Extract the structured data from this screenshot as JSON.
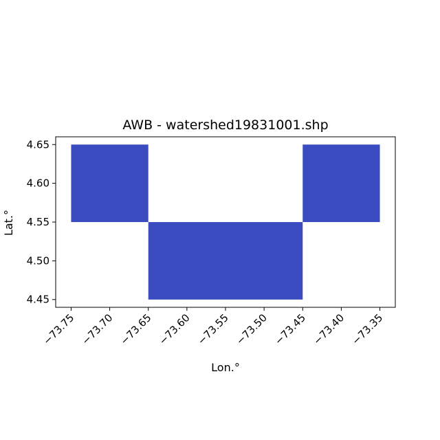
{
  "chart_data": {
    "type": "heatmap",
    "title": "AWB - watershed19831001.shp",
    "xlabel": "Lon.°",
    "ylabel": "Lat.°",
    "xlim": [
      -73.77,
      -73.33
    ],
    "ylim": [
      4.44,
      4.66
    ],
    "xticks": [
      -73.75,
      -73.7,
      -73.65,
      -73.6,
      -73.55,
      -73.5,
      -73.45,
      -73.4,
      -73.35
    ],
    "xtick_labels": [
      "−73.75",
      "−73.70",
      "−73.65",
      "−73.60",
      "−73.55",
      "−73.50",
      "−73.45",
      "−73.40",
      "−73.35"
    ],
    "yticks": [
      4.45,
      4.5,
      4.55,
      4.6,
      4.65
    ],
    "ytick_labels": [
      "4.45",
      "4.50",
      "4.55",
      "4.60",
      "4.65"
    ],
    "cell_color": "#3b4cc0",
    "grid": false,
    "cells": [
      {
        "lon_min": -73.75,
        "lon_max": -73.65,
        "lat_min": 4.55,
        "lat_max": 4.65
      },
      {
        "lon_min": -73.65,
        "lon_max": -73.45,
        "lat_min": 4.45,
        "lat_max": 4.55
      },
      {
        "lon_min": -73.45,
        "lon_max": -73.35,
        "lat_min": 4.55,
        "lat_max": 4.65
      }
    ]
  }
}
